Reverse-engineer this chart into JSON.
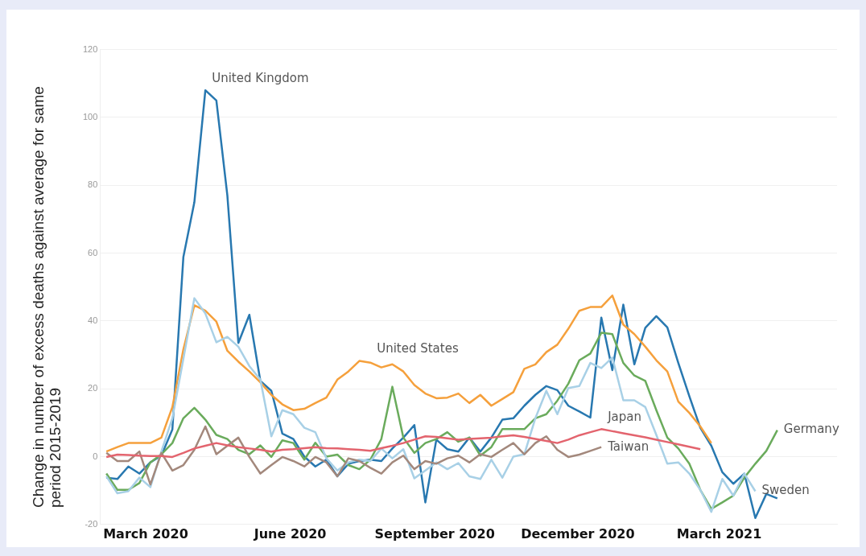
{
  "chart_data": {
    "type": "line",
    "ylabel": "Change in number of excess deaths against average for same period 2015-2019",
    "x": [
      "2020-02-05",
      "2020-02-12",
      "2020-02-19",
      "2020-02-26",
      "2020-03-04",
      "2020-03-11",
      "2020-03-18",
      "2020-03-25",
      "2020-04-01",
      "2020-04-08",
      "2020-04-15",
      "2020-04-22",
      "2020-04-29",
      "2020-05-06",
      "2020-05-13",
      "2020-05-20",
      "2020-05-27",
      "2020-06-03",
      "2020-06-10",
      "2020-06-17",
      "2020-06-24",
      "2020-07-01",
      "2020-07-08",
      "2020-07-15",
      "2020-07-22",
      "2020-07-29",
      "2020-08-05",
      "2020-08-12",
      "2020-08-19",
      "2020-08-26",
      "2020-09-02",
      "2020-09-09",
      "2020-09-16",
      "2020-09-23",
      "2020-09-30",
      "2020-10-07",
      "2020-10-14",
      "2020-10-21",
      "2020-10-28",
      "2020-11-04",
      "2020-11-11",
      "2020-11-18",
      "2020-11-25",
      "2020-12-02",
      "2020-12-09",
      "2020-12-16",
      "2020-12-23",
      "2020-12-30",
      "2021-01-06",
      "2021-01-13",
      "2021-01-20",
      "2021-01-27",
      "2021-02-03",
      "2021-02-10",
      "2021-02-17",
      "2021-02-24",
      "2021-03-03",
      "2021-03-10",
      "2021-03-17",
      "2021-03-24",
      "2021-03-31",
      "2021-04-07"
    ],
    "series": [
      {
        "color": "#e3646e",
        "values": [
          -0.1,
          0.6,
          0.5,
          0.3,
          0.2,
          0.2,
          -0.1,
          1.1,
          2.4,
          3.2,
          4,
          3.3,
          2.8,
          2.4,
          2,
          1.5,
          2,
          2.2,
          2.5,
          2.8,
          2.5,
          2.4,
          2.2,
          2,
          1.7,
          2.5,
          3.2,
          4,
          5,
          6,
          5.8,
          5.4,
          5,
          5.2,
          5.4,
          5.6,
          6,
          6.3,
          5.8,
          5.2,
          4.6,
          4,
          5,
          6.3,
          7.2,
          8.1,
          7.5,
          6.9,
          6.3,
          5.7,
          5,
          4.3,
          3.6,
          2.9,
          2.2,
          null,
          null,
          null,
          null,
          null,
          null,
          null
        ]
      },
      {
        "color": "#a3887c",
        "values": [
          1.1,
          -1.3,
          -1.3,
          1.5,
          -8.2,
          1.1,
          -4.1,
          -2.5,
          2,
          8.9,
          0.7,
          3.2,
          5.6,
          -0.1,
          -5,
          -2.5,
          -0.1,
          -1.3,
          -2.9,
          -0.1,
          -1.7,
          -5.8,
          -0.5,
          -1.3,
          -3.3,
          -5,
          -1.7,
          0.3,
          -3.7,
          -1.3,
          -2.1,
          -0.5,
          0.3,
          -1.7,
          0.7,
          -0.1,
          2,
          4,
          0.7,
          4,
          6,
          2,
          -0.1,
          0.6,
          1.7,
          2.8,
          null,
          null,
          null,
          null,
          null,
          null,
          null,
          null,
          null,
          null,
          null,
          null,
          null,
          null,
          null,
          null
        ]
      },
      {
        "color": "#a8d0e6",
        "values": [
          -5.8,
          -10.8,
          -10.2,
          -6.2,
          -9,
          1.5,
          11.3,
          28.8,
          46.7,
          42.2,
          33.7,
          35.3,
          32.4,
          26.7,
          22.7,
          6,
          13.7,
          12.5,
          8.5,
          7.2,
          -0.5,
          -4.1,
          -1.7,
          -0.9,
          -1.3,
          2.4,
          -0.5,
          2.2,
          -6.4,
          -4.1,
          -1.7,
          -3.7,
          -1.9,
          -5.8,
          -6.6,
          -0.9,
          -6.2,
          0,
          0.7,
          11.3,
          19.4,
          12.5,
          20.2,
          20.8,
          27.6,
          26.1,
          29.2,
          16.6,
          16.6,
          14.6,
          6.4,
          -2.1,
          -1.7,
          -5,
          -9.8,
          -16.3,
          -6.6,
          -11.5,
          -5,
          -10.2,
          null,
          null
        ]
      },
      {
        "color": "#6aab5c",
        "values": [
          -5,
          -9.8,
          -9.8,
          -7.8,
          -1.7,
          0.7,
          4,
          11.3,
          14.4,
          10.9,
          6.4,
          5.2,
          2,
          0.7,
          3.3,
          -0.1,
          4.8,
          4,
          -0.9,
          4.1,
          0,
          0.6,
          -2.5,
          -3.7,
          -0.9,
          5.2,
          20.6,
          5.6,
          1.1,
          4,
          5.2,
          7.2,
          4.4,
          5.6,
          0.3,
          2.8,
          8.1,
          8.1,
          8.1,
          11.3,
          12.5,
          16.5,
          21.5,
          28.4,
          30.4,
          36.5,
          36.1,
          27.6,
          23.9,
          22.3,
          13.7,
          5.6,
          2.4,
          -2.1,
          -9.8,
          -15.4,
          -13.5,
          -11.5,
          -6.2,
          -2.1,
          1.7,
          7.8
        ]
      },
      {
        "color": "#f5a03c",
        "values": [
          1.5,
          2.8,
          4,
          4,
          4,
          5.6,
          14.6,
          31.6,
          44.6,
          43,
          39.8,
          31.2,
          28,
          25.1,
          21.9,
          18.2,
          15.4,
          13.7,
          14.1,
          15.8,
          17.4,
          22.7,
          25.1,
          28.2,
          27.7,
          26.3,
          27.2,
          25.1,
          21.1,
          18.6,
          17.2,
          17.4,
          18.6,
          15.8,
          18.2,
          15,
          17,
          19,
          25.9,
          27.2,
          30.8,
          33,
          37.7,
          43,
          44.1,
          44.1,
          47.5,
          38.9,
          36.1,
          32.4,
          28.4,
          25.1,
          16.2,
          12.9,
          8.9,
          4,
          null,
          null,
          null,
          null,
          null,
          null
        ]
      },
      {
        "color": "#2878b0",
        "values": [
          -6.2,
          -6.6,
          -2.9,
          -5,
          -1.7,
          0.3,
          8,
          58.8,
          75,
          108,
          105,
          77,
          33.5,
          41.8,
          22.3,
          19.4,
          6.8,
          5.2,
          0,
          -2.9,
          -0.9,
          -5.8,
          -2.1,
          -1.3,
          -0.9,
          -1.3,
          2.4,
          5.6,
          9.3,
          -13.5,
          5,
          2.2,
          1.5,
          5.6,
          1.5,
          5.6,
          10.9,
          11.3,
          15,
          18.2,
          20.8,
          19.6,
          15,
          13.3,
          11.5,
          41,
          25.5,
          44.8,
          27.2,
          38,
          41.4,
          38.1,
          27.6,
          17.8,
          8.5,
          3.2,
          -4.6,
          -8,
          -5,
          -18.1,
          -11,
          -12.3
        ]
      }
    ],
    "xlim": [
      "2020-02-01",
      "2021-05-15"
    ],
    "xticks": [
      {
        "value": "2020-03-01",
        "label": "March 2020"
      },
      {
        "value": "2020-06-01",
        "label": "June 2020"
      },
      {
        "value": "2020-09-01",
        "label": "September 2020"
      },
      {
        "value": "2020-12-01",
        "label": "December 2020"
      },
      {
        "value": "2021-03-01",
        "label": "March 2021"
      }
    ],
    "ylim": [
      -20,
      120
    ],
    "yticks": [
      -20,
      0,
      20,
      40,
      60,
      80,
      100,
      120
    ],
    "grid": "y",
    "legend": false,
    "marker": "none",
    "annotations": [
      {
        "text": "United Kingdom",
        "x": "2020-04-08",
        "y": 108
      },
      {
        "text": "United States",
        "x": "2020-07-22",
        "y": 28.2
      },
      {
        "text": "Japan",
        "x": "2020-12-16",
        "y": 8.1
      },
      {
        "text": "Taiwan",
        "x": "2020-12-16",
        "y": 2.8
      },
      {
        "text": "Germany",
        "x": "2021-04-07",
        "y": 7.8
      },
      {
        "text": "Sweden",
        "x": "2021-03-24",
        "y": -10.2
      }
    ]
  }
}
